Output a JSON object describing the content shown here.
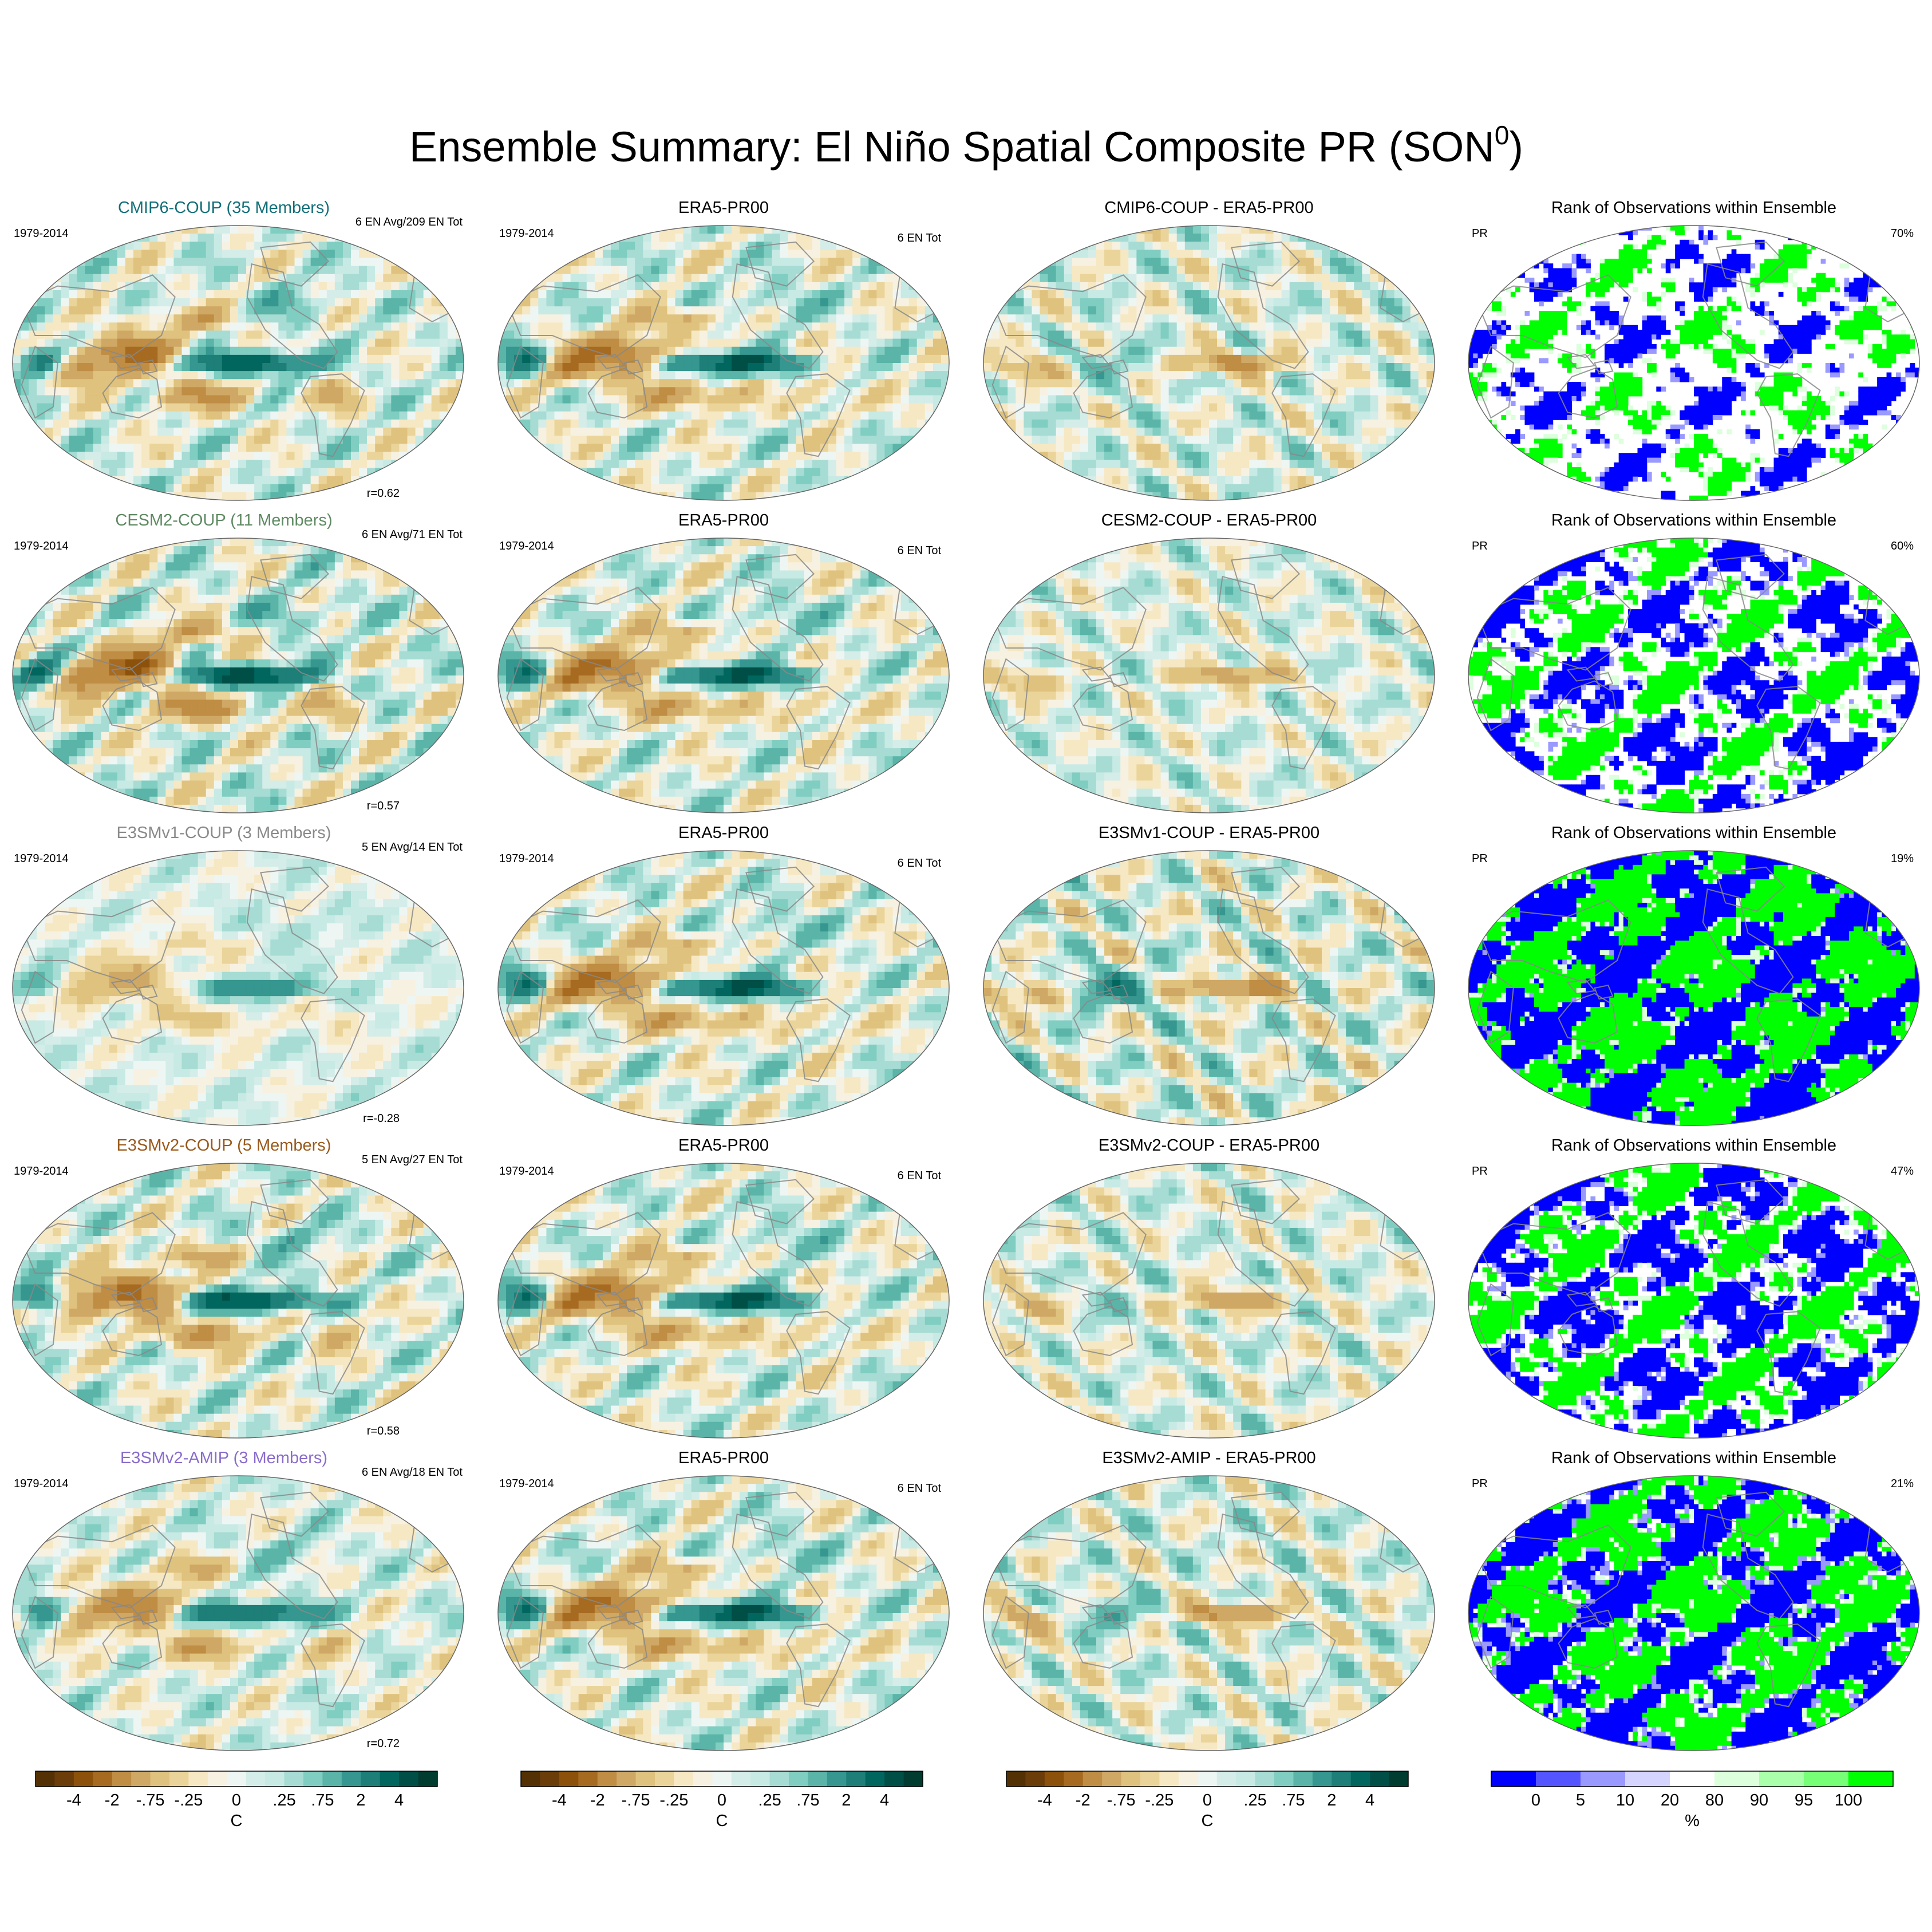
{
  "title": "Ensemble Summary: El Niño Spatial Composite PR (SON",
  "title_sup": "0",
  "title_close": ")",
  "colors": {
    "brown_dark": "#4a2a06",
    "teal_dark": "#003c30",
    "rank_low": "#0000ff",
    "rank_high": "#00ff00",
    "coast": "#888888"
  },
  "rows": [
    {
      "model": "CMIP6-COUP (35 Members)",
      "model_color": "#13707a",
      "period": "1979-2014",
      "ens_info": "6 EN Avg/209 EN Tot",
      "r": "r=0.62",
      "obs_title": "ERA5-PR00",
      "obs_period": "1979-2014",
      "obs_info": "6 EN Tot",
      "diff_title": "CMIP6-COUP - ERA5-PR00",
      "rank_title": "Rank of Observations within Ensemble",
      "rank_var": "PR",
      "rank_pct": "70%",
      "amp": 1.15,
      "shift": 0.1,
      "rank_density": 0.45
    },
    {
      "model": "CESM2-COUP (11 Members)",
      "model_color": "#5f8a63",
      "period": "1979-2014",
      "ens_info": "6 EN Avg/71 EN Tot",
      "r": "r=0.57",
      "obs_title": "ERA5-PR00",
      "obs_period": "1979-2014",
      "obs_info": "6 EN Tot",
      "diff_title": "CESM2-COUP - ERA5-PR00",
      "rank_title": "Rank of Observations within Ensemble",
      "rank_var": "PR",
      "rank_pct": "60%",
      "amp": 1.35,
      "shift": -0.2,
      "rank_density": 0.62
    },
    {
      "model": "E3SMv1-COUP (3 Members)",
      "model_color": "#8a8a8a",
      "period": "1979-2014",
      "ens_info": "5 EN Avg/14 EN Tot",
      "r": "r=-0.28",
      "obs_title": "ERA5-PR00",
      "obs_period": "1979-2014",
      "obs_info": "6 EN Tot",
      "diff_title": "E3SMv1-COUP - ERA5-PR00",
      "rank_title": "Rank of Observations within Ensemble",
      "rank_var": "PR",
      "rank_pct": "19%",
      "amp": 0.55,
      "shift": 0.6,
      "rank_density": 0.9
    },
    {
      "model": "E3SMv2-COUP (5 Members)",
      "model_color": "#9a5a1c",
      "period": "1979-2014",
      "ens_info": "5 EN Avg/27 EN Tot",
      "r": "r=0.58",
      "obs_title": "ERA5-PR00",
      "obs_period": "1979-2014",
      "obs_info": "6 EN Tot",
      "diff_title": "E3SMv2-COUP - ERA5-PR00",
      "rank_title": "Rank of Observations within Ensemble",
      "rank_var": "PR",
      "rank_pct": "47%",
      "amp": 1.2,
      "shift": 0.0,
      "rank_density": 0.7
    },
    {
      "model": "E3SMv2-AMIP (3 Members)",
      "model_color": "#8a6ccc",
      "period": "1979-2014",
      "ens_info": "6 EN Avg/18 EN Tot",
      "r": "r=0.72",
      "obs_title": "ERA5-PR00",
      "obs_period": "1979-2014",
      "obs_info": "6 EN Tot",
      "diff_title": "E3SMv2-AMIP - ERA5-PR00",
      "rank_title": "Rank of Observations within Ensemble",
      "rank_var": "PR",
      "rank_pct": "21%",
      "amp": 0.95,
      "shift": 0.25,
      "rank_density": 0.82
    }
  ],
  "chart_data": {
    "type": "heatmap",
    "title": "Ensemble Summary: El Niño Spatial Composite PR (SON0)",
    "projection": "Robinson (global, 5 rows x 4 columns of maps)",
    "panel_columns": [
      "Model ensemble composite",
      "ERA5-PR00 observations",
      "Model - ERA5-PR00 difference",
      "Rank of Observations within Ensemble"
    ],
    "series": [
      {
        "name": "CMIP6-COUP (35 Members)",
        "pattern_correlation": 0.62,
        "rank_pct": 70
      },
      {
        "name": "CESM2-COUP (11 Members)",
        "pattern_correlation": 0.57,
        "rank_pct": 60
      },
      {
        "name": "E3SMv1-COUP (3 Members)",
        "pattern_correlation": -0.28,
        "rank_pct": 19
      },
      {
        "name": "E3SMv2-COUP (5 Members)",
        "pattern_correlation": 0.58,
        "rank_pct": 47
      },
      {
        "name": "E3SMv2-AMIP (3 Members)",
        "pattern_correlation": 0.72,
        "rank_pct": 21
      }
    ],
    "colorbar_diverging": {
      "label": "C",
      "tick_labels": [
        "-4",
        "-2",
        "-.75",
        "-.25",
        "0",
        ".25",
        ".75",
        "2",
        "4"
      ],
      "colors": [
        "#543005",
        "#6b3d08",
        "#8c510a",
        "#a66a20",
        "#bf8d43",
        "#cfa865",
        "#dfc27d",
        "#ead49a",
        "#f6e8c3",
        "#f7f1e2",
        "#eef6f4",
        "#d4ede8",
        "#c7eae5",
        "#a6dcd3",
        "#80cdc1",
        "#5ab4a8",
        "#35978f",
        "#1d7f77",
        "#01665e",
        "#004f46",
        "#003c30"
      ]
    },
    "colorbar_rank": {
      "label": "%",
      "tick_labels": [
        "0",
        "5",
        "10",
        "20",
        "80",
        "90",
        "95",
        "100"
      ],
      "colors": [
        "#0000ff",
        "#5555ff",
        "#9999ff",
        "#d4d4ff",
        "#ffffff",
        "#dcffdc",
        "#aaffaa",
        "#77ff77",
        "#00ff00"
      ]
    }
  }
}
